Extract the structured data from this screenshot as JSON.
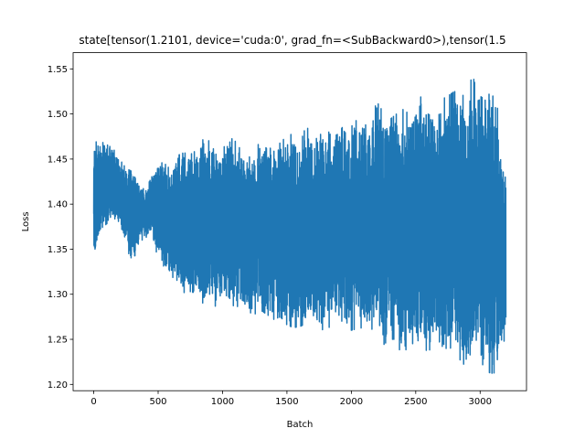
{
  "chart_data": {
    "type": "line",
    "title": "state[tensor(1.2101, device='cuda:0', grad_fn=<SubBackward0>),tensor(1.5",
    "xlabel": "Batch",
    "ylabel": "Loss",
    "xlim": [
      -160,
      3360
    ],
    "ylim": [
      1.193,
      1.568
    ],
    "x_ticks": [
      0,
      500,
      1000,
      1500,
      2000,
      2500,
      3000
    ],
    "y_ticks": [
      1.2,
      1.25,
      1.3,
      1.35,
      1.4,
      1.45,
      1.5,
      1.55
    ],
    "x_tick_labels": [
      "0",
      "500",
      "1000",
      "1500",
      "2000",
      "2500",
      "3000"
    ],
    "y_tick_labels": [
      "1.20",
      "1.25",
      "1.30",
      "1.35",
      "1.40",
      "1.45",
      "1.50",
      "1.55"
    ],
    "grid": false,
    "line_color": "#1f77b4",
    "series": [
      {
        "x": [
          0,
          50,
          100,
          150,
          200,
          250,
          300,
          350,
          400,
          450,
          500,
          550,
          600,
          650,
          700,
          750,
          800,
          850,
          900,
          950,
          1000,
          1050,
          1100,
          1150,
          1200,
          1250,
          1300,
          1350,
          1400,
          1450,
          1500,
          1550,
          1600,
          1650,
          1700,
          1750,
          1800,
          1850,
          1900,
          1950,
          2000,
          2050,
          2100,
          2150,
          2200,
          2250,
          2300,
          2350,
          2400,
          2450,
          2500,
          2550,
          2600,
          2650,
          2700,
          2750,
          2800,
          2850,
          2900,
          2950,
          3000,
          3050,
          3100,
          3150,
          3200
        ],
        "upper": [
          1.478,
          1.47,
          1.466,
          1.462,
          1.45,
          1.44,
          1.436,
          1.42,
          1.416,
          1.43,
          1.447,
          1.445,
          1.438,
          1.454,
          1.457,
          1.455,
          1.46,
          1.472,
          1.47,
          1.455,
          1.458,
          1.48,
          1.476,
          1.462,
          1.448,
          1.472,
          1.47,
          1.46,
          1.465,
          1.468,
          1.476,
          1.478,
          1.466,
          1.488,
          1.47,
          1.475,
          1.486,
          1.474,
          1.478,
          1.49,
          1.486,
          1.495,
          1.5,
          1.478,
          1.535,
          1.488,
          1.494,
          1.5,
          1.505,
          1.5,
          1.515,
          1.52,
          1.512,
          1.5,
          1.516,
          1.52,
          1.525,
          1.522,
          1.518,
          1.552,
          1.52,
          1.514,
          1.535,
          1.494,
          1.43
        ],
        "lower": [
          1.336,
          1.372,
          1.378,
          1.385,
          1.38,
          1.352,
          1.328,
          1.358,
          1.362,
          1.37,
          1.338,
          1.33,
          1.32,
          1.315,
          1.302,
          1.298,
          1.295,
          1.29,
          1.3,
          1.285,
          1.298,
          1.288,
          1.287,
          1.285,
          1.28,
          1.278,
          1.282,
          1.277,
          1.272,
          1.275,
          1.266,
          1.263,
          1.264,
          1.268,
          1.272,
          1.256,
          1.265,
          1.262,
          1.278,
          1.263,
          1.26,
          1.262,
          1.263,
          1.262,
          1.258,
          1.244,
          1.25,
          1.25,
          1.226,
          1.252,
          1.239,
          1.243,
          1.235,
          1.255,
          1.232,
          1.243,
          1.236,
          1.226,
          1.218,
          1.234,
          1.227,
          1.214,
          1.212,
          1.217,
          1.26
        ]
      }
    ]
  }
}
